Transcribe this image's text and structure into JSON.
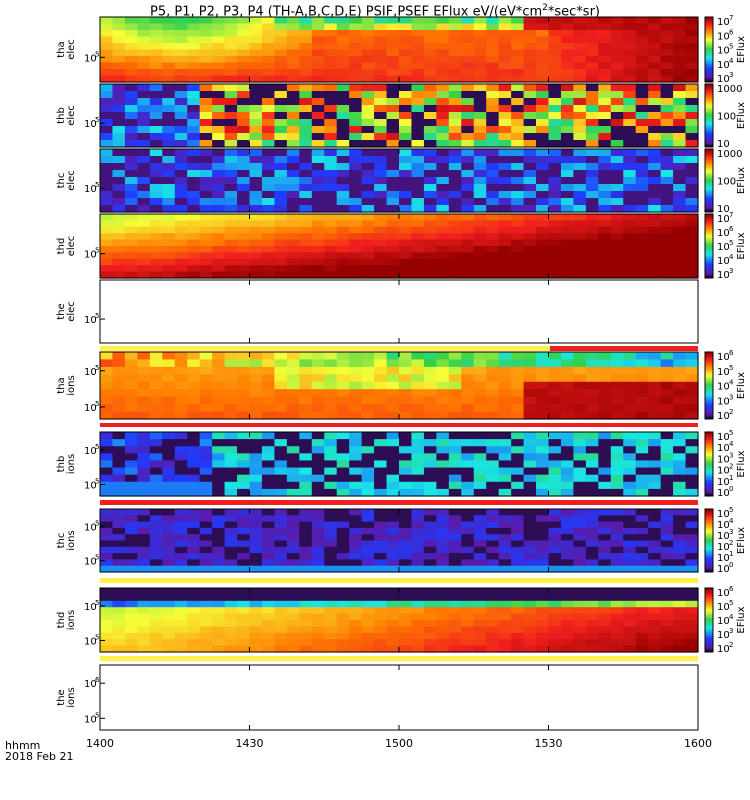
{
  "title": {
    "main": "P5, P1, P2, P3, P4 (TH-A,B,C,D,E) PSIF,PSEF EFlux eV/(eV*cm",
    "exp": "2",
    "tail": "*sec*sr)"
  },
  "colors": {
    "black": "#000000",
    "purple": "#5a1aa8",
    "blue": "#1e3cff",
    "cyan": "#19e6e6",
    "green": "#34d04a",
    "yellow": "#f5ff38",
    "orange": "#ff7a00",
    "red": "#f01e1e",
    "darkred": "#b00000",
    "paleyellow": "#fff14a"
  },
  "chart_data": {
    "type": "heatmap",
    "x_tick_labels": [
      "1400",
      "1430",
      "1500",
      "1530",
      "1600"
    ],
    "x_axis_label": "hhmm",
    "date_label": "2018 Feb 21",
    "panels": [
      {
        "probe": "tha",
        "species": "elec",
        "ytick": "10",
        "yexp": "5",
        "colorbar": {
          "label": "EFlux",
          "ticks": [
            {
              "b": "10",
              "e": "7"
            },
            {
              "b": "10",
              "e": "6"
            },
            {
              "b": "10",
              "e": "5"
            },
            {
              "b": "10",
              "e": "4"
            },
            {
              "b": "10",
              "e": "3"
            }
          ]
        }
      },
      {
        "probe": "thb",
        "species": "elec",
        "ytick": "10",
        "yexp": "5",
        "colorbar": {
          "label": "EFlux",
          "ticks": [
            {
              "b": "1000",
              "e": ""
            },
            {
              "b": "100",
              "e": ""
            },
            {
              "b": "10",
              "e": ""
            }
          ]
        }
      },
      {
        "probe": "thc",
        "species": "elec",
        "ytick": "10",
        "yexp": "5",
        "colorbar": {
          "label": "EFlux",
          "ticks": [
            {
              "b": "1000",
              "e": ""
            },
            {
              "b": "100",
              "e": ""
            },
            {
              "b": "10",
              "e": ""
            }
          ]
        }
      },
      {
        "probe": "thd",
        "species": "elec",
        "ytick": "10",
        "yexp": "5",
        "colorbar": {
          "label": "EFlux",
          "ticks": [
            {
              "b": "10",
              "e": "7"
            },
            {
              "b": "10",
              "e": "6"
            },
            {
              "b": "10",
              "e": "5"
            },
            {
              "b": "10",
              "e": "4"
            },
            {
              "b": "10",
              "e": "3"
            }
          ]
        }
      },
      {
        "probe": "the",
        "species": "elec",
        "ytick": "10",
        "yexp": "5",
        "colorbar": null
      },
      {
        "probe": "tha",
        "species": "ions",
        "ytick": "10",
        "yexp": "5",
        "ytick2": "10",
        "yexp2": "5",
        "colorbar": {
          "label": "EFlux",
          "ticks": [
            {
              "b": "10",
              "e": "6"
            },
            {
              "b": "10",
              "e": "5"
            },
            {
              "b": "10",
              "e": "4"
            },
            {
              "b": "10",
              "e": "3"
            },
            {
              "b": "10",
              "e": "2"
            }
          ]
        }
      },
      {
        "probe": "thb",
        "species": "ions",
        "ytick": "10",
        "yexp": "5",
        "ytick2": "10",
        "yexp2": "5",
        "colorbar": {
          "label": "EFlux",
          "ticks": [
            {
              "b": "10",
              "e": "5"
            },
            {
              "b": "10",
              "e": "4"
            },
            {
              "b": "10",
              "e": "3"
            },
            {
              "b": "10",
              "e": "2"
            },
            {
              "b": "10",
              "e": "1"
            },
            {
              "b": "10",
              "e": "0"
            }
          ]
        }
      },
      {
        "probe": "thc",
        "species": "ions",
        "ytick": "10",
        "yexp": "5",
        "ytick2": "10",
        "yexp2": "5",
        "colorbar": {
          "label": "EFlux",
          "ticks": [
            {
              "b": "10",
              "e": "5"
            },
            {
              "b": "10",
              "e": "4"
            },
            {
              "b": "10",
              "e": "3"
            },
            {
              "b": "10",
              "e": "2"
            },
            {
              "b": "10",
              "e": "1"
            },
            {
              "b": "10",
              "e": "0"
            }
          ]
        }
      },
      {
        "probe": "thd",
        "species": "ions",
        "ytick": "10",
        "yexp": "5",
        "ytick2": "10",
        "yexp2": "5",
        "colorbar": {
          "label": "EFlux",
          "ticks": [
            {
              "b": "10",
              "e": "6"
            },
            {
              "b": "10",
              "e": "5"
            },
            {
              "b": "10",
              "e": "4"
            },
            {
              "b": "10",
              "e": "3"
            },
            {
              "b": "10",
              "e": "2"
            }
          ]
        }
      },
      {
        "probe": "the",
        "species": "ions",
        "ytick": "10",
        "yexp": "6",
        "ytick2": "10",
        "yexp2": "5",
        "colorbar": null
      }
    ]
  }
}
